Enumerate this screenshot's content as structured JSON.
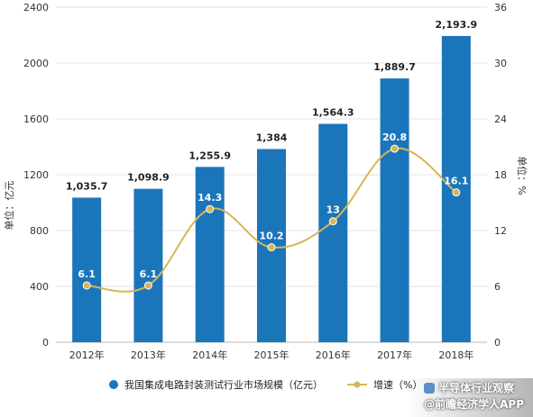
{
  "chart_data": {
    "type": "bar",
    "categories": [
      "2012年",
      "2013年",
      "2014年",
      "2015年",
      "2016年",
      "2017年",
      "2018年"
    ],
    "series": [
      {
        "name": "我国集成电路封装测试行业市场规模（亿元）",
        "type": "bar",
        "axis": "left",
        "values": [
          1035.7,
          1098.9,
          1255.9,
          1384,
          1564.3,
          1889.7,
          2193.9
        ],
        "labels": [
          "1,035.7",
          "1,098.9",
          "1,255.9",
          "1,384",
          "1,564.3",
          "1,889.7",
          "2,193.9"
        ]
      },
      {
        "name": "增速（%）",
        "type": "line",
        "axis": "right",
        "values": [
          6.1,
          6.1,
          14.3,
          10.2,
          13,
          20.8,
          16.1
        ],
        "labels": [
          "6.1",
          "6.1",
          "14.3",
          "10.2",
          "13",
          "20.8",
          "16.1"
        ]
      }
    ],
    "ylabel_left": "单位：亿元",
    "ylabel_right": "单位：%",
    "ylim_left": [
      0,
      2400
    ],
    "yticks_left": [
      0,
      400,
      800,
      1200,
      1600,
      2000,
      2400
    ],
    "ylim_right": [
      0,
      36
    ],
    "yticks_right": [
      0,
      6,
      12,
      18,
      24,
      30,
      36
    ],
    "grid": true,
    "legend": "bottom",
    "colors": {
      "bar": "#1b75bb",
      "line": "#d6b655",
      "marker_fill": "#d6b655"
    }
  },
  "watermark": {
    "line1": "半导体行业观察",
    "line2": "@前瞻经济学人APP"
  }
}
